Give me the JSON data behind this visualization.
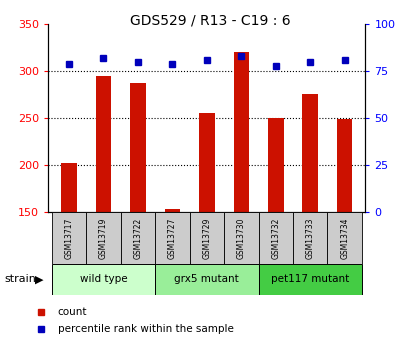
{
  "title": "GDS529 / R13 - C19 : 6",
  "samples": [
    "GSM13717",
    "GSM13719",
    "GSM13722",
    "GSM13727",
    "GSM13729",
    "GSM13730",
    "GSM13732",
    "GSM13733",
    "GSM13734"
  ],
  "counts": [
    202,
    295,
    287,
    153,
    255,
    320,
    250,
    276,
    249
  ],
  "percentiles": [
    79,
    82,
    80,
    79,
    81,
    83,
    78,
    80,
    81
  ],
  "ylim_left": [
    150,
    350
  ],
  "ylim_right": [
    0,
    100
  ],
  "yticks_left": [
    150,
    200,
    250,
    300,
    350
  ],
  "yticks_right": [
    0,
    25,
    50,
    75,
    100
  ],
  "groups": [
    {
      "label": "wild type",
      "indices": [
        0,
        1,
        2
      ],
      "color": "#ccffcc"
    },
    {
      "label": "grx5 mutant",
      "indices": [
        3,
        4,
        5
      ],
      "color": "#99ee99"
    },
    {
      "label": "pet117 mutant",
      "indices": [
        6,
        7,
        8
      ],
      "color": "#44cc44"
    }
  ],
  "bar_color": "#cc1100",
  "dot_color": "#0000bb",
  "bar_width": 0.45,
  "strain_label": "strain",
  "legend_count": "count",
  "legend_percentile": "percentile rank within the sample",
  "sample_box_color": "#cccccc",
  "title_fontsize": 10,
  "axis_fontsize": 8,
  "label_fontsize": 6
}
